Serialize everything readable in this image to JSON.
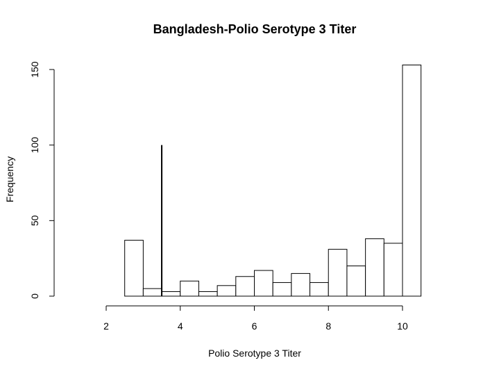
{
  "chart_data": {
    "type": "bar",
    "title": "Bangladesh-Polio Serotype 3 Titer",
    "xlabel": "Polio Serotype 3 Titer",
    "ylabel": "Frequency",
    "xlim": [
      1,
      11
    ],
    "ylim": [
      0,
      160
    ],
    "x_ticks": [
      2,
      4,
      6,
      8,
      10
    ],
    "y_ticks": [
      0,
      50,
      100,
      150
    ],
    "bins": [
      {
        "start": 2.5,
        "end": 3.0,
        "count": 37
      },
      {
        "start": 3.0,
        "end": 3.5,
        "count": 5
      },
      {
        "start": 3.5,
        "end": 4.0,
        "count": 3
      },
      {
        "start": 4.0,
        "end": 4.5,
        "count": 10
      },
      {
        "start": 4.5,
        "end": 5.0,
        "count": 3
      },
      {
        "start": 5.0,
        "end": 5.5,
        "count": 7
      },
      {
        "start": 5.5,
        "end": 6.0,
        "count": 13
      },
      {
        "start": 6.0,
        "end": 6.5,
        "count": 17
      },
      {
        "start": 6.5,
        "end": 7.0,
        "count": 9
      },
      {
        "start": 7.0,
        "end": 7.5,
        "count": 15
      },
      {
        "start": 7.5,
        "end": 8.0,
        "count": 9
      },
      {
        "start": 8.0,
        "end": 8.5,
        "count": 31
      },
      {
        "start": 8.5,
        "end": 9.0,
        "count": 20
      },
      {
        "start": 9.0,
        "end": 9.5,
        "count": 38
      },
      {
        "start": 9.5,
        "end": 10.0,
        "count": 35
      },
      {
        "start": 10.0,
        "end": 10.5,
        "count": 153
      }
    ],
    "reference_line": {
      "x": 3.5,
      "y_from": 0,
      "y_to": 100
    },
    "grid": false,
    "colors": {
      "bar_fill": "#ffffff",
      "bar_stroke": "#000000"
    }
  }
}
